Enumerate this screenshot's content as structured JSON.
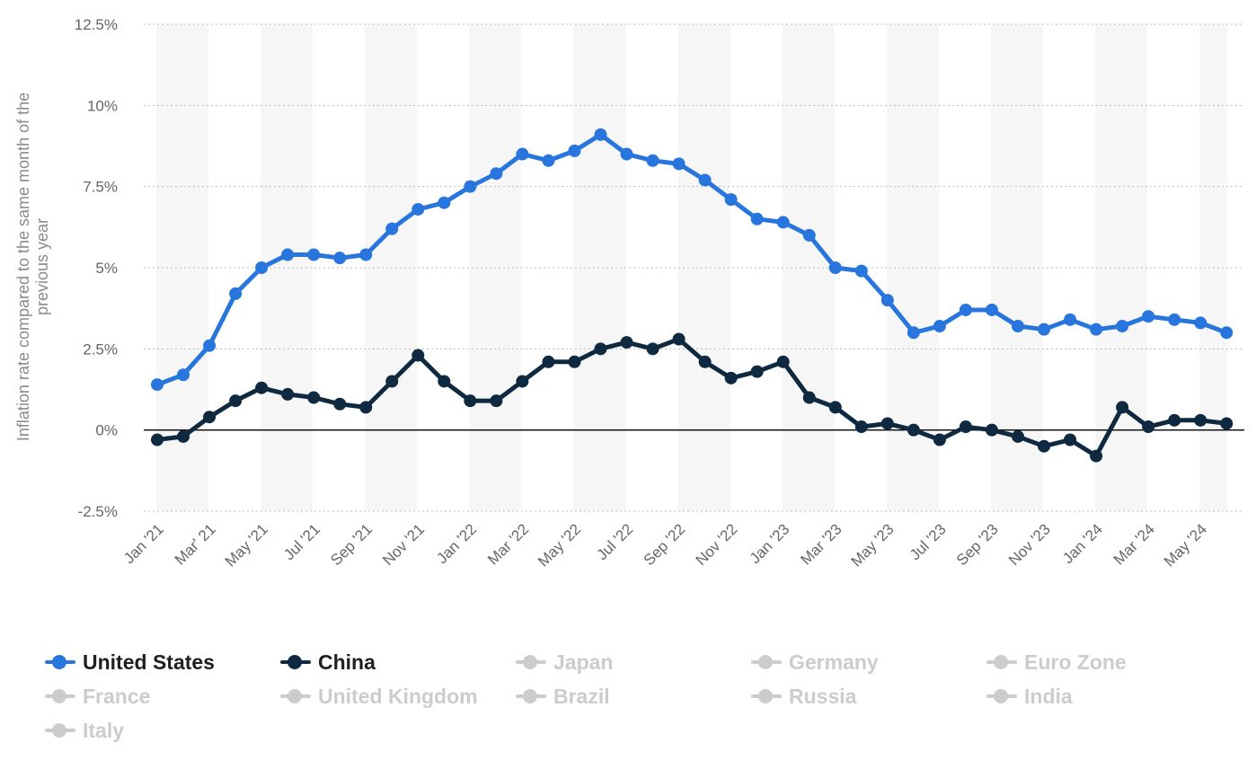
{
  "chart_data": {
    "type": "line",
    "ylabel": "Inflation rate compared to the same month of the previous year",
    "xlabel": "",
    "ylim": [
      -2.5,
      12.5
    ],
    "yticks": [
      12.5,
      10,
      7.5,
      5,
      2.5,
      0,
      -2.5
    ],
    "ytick_labels": [
      "12.5%",
      "10%",
      "7.5%",
      "5%",
      "2.5%",
      "0%",
      "-2.5%"
    ],
    "x": [
      "Jan '21",
      "Feb '21",
      "Mar '21",
      "Apr '21",
      "May '21",
      "Jun '21",
      "Jul '21",
      "Aug '21",
      "Sep '21",
      "Oct '21",
      "Nov '21",
      "Dec '21",
      "Jan '22",
      "Feb '22",
      "Mar '22",
      "Apr '22",
      "May '22",
      "Jun '22",
      "Jul '22",
      "Aug '22",
      "Sep '22",
      "Oct '22",
      "Nov '22",
      "Dec '22",
      "Jan '23",
      "Feb '23",
      "Mar '23",
      "Apr '23",
      "May '23",
      "Jun '23",
      "Jul '23",
      "Aug '23",
      "Sep '23",
      "Oct '23",
      "Nov '23",
      "Dec '23",
      "Jan '24",
      "Feb '24",
      "Mar '24",
      "Apr '24",
      "May '24",
      "Jun '24"
    ],
    "xtick_labels": [
      "Jan '21",
      "Mar' 21",
      "May '21",
      "Jul '21",
      "Sep '21",
      "Nov '21",
      "Jan '22",
      "Mar '22",
      "May '22",
      "Jul '22",
      "Sep '22",
      "Nov '22",
      "Jan '23",
      "Mar '23",
      "May '23",
      "Jul '23",
      "Sep '23",
      "Nov '23",
      "Jan '24",
      "Mar '24",
      "May '24"
    ],
    "series": [
      {
        "name": "United States",
        "color": "#2876dd",
        "values": [
          1.4,
          1.7,
          2.6,
          4.2,
          5.0,
          5.4,
          5.4,
          5.3,
          5.4,
          6.2,
          6.8,
          7.0,
          7.5,
          7.9,
          8.5,
          8.3,
          8.6,
          9.1,
          8.5,
          8.3,
          8.2,
          7.7,
          7.1,
          6.5,
          6.4,
          6.0,
          5.0,
          4.9,
          4.0,
          3.0,
          3.2,
          3.7,
          3.7,
          3.2,
          3.1,
          3.4,
          3.1,
          3.2,
          3.5,
          3.4,
          3.3,
          3.0
        ]
      },
      {
        "name": "China",
        "color": "#0f2a40",
        "values": [
          -0.3,
          -0.2,
          0.4,
          0.9,
          1.3,
          1.1,
          1.0,
          0.8,
          0.7,
          1.5,
          2.3,
          1.5,
          0.9,
          0.9,
          1.5,
          2.1,
          2.1,
          2.5,
          2.7,
          2.5,
          2.8,
          2.1,
          1.6,
          1.8,
          2.1,
          1.0,
          0.7,
          0.1,
          0.2,
          0.0,
          -0.3,
          0.1,
          0.0,
          -0.2,
          -0.5,
          -0.3,
          -0.8,
          0.7,
          0.1,
          0.3,
          0.3,
          0.2
        ]
      }
    ]
  },
  "legend": {
    "items": [
      {
        "label": "United States",
        "color": "#2876dd",
        "active": true
      },
      {
        "label": "China",
        "color": "#0f2a40",
        "active": true
      },
      {
        "label": "Japan",
        "color": "#cccccc",
        "active": false
      },
      {
        "label": "Germany",
        "color": "#cccccc",
        "active": false
      },
      {
        "label": "Euro Zone",
        "color": "#cccccc",
        "active": false
      },
      {
        "label": "France",
        "color": "#cccccc",
        "active": false
      },
      {
        "label": "United Kingdom",
        "color": "#cccccc",
        "active": false
      },
      {
        "label": "Brazil",
        "color": "#cccccc",
        "active": false
      },
      {
        "label": "Russia",
        "color": "#cccccc",
        "active": false
      },
      {
        "label": "India",
        "color": "#cccccc",
        "active": false
      },
      {
        "label": "Italy",
        "color": "#cccccc",
        "active": false
      }
    ]
  }
}
